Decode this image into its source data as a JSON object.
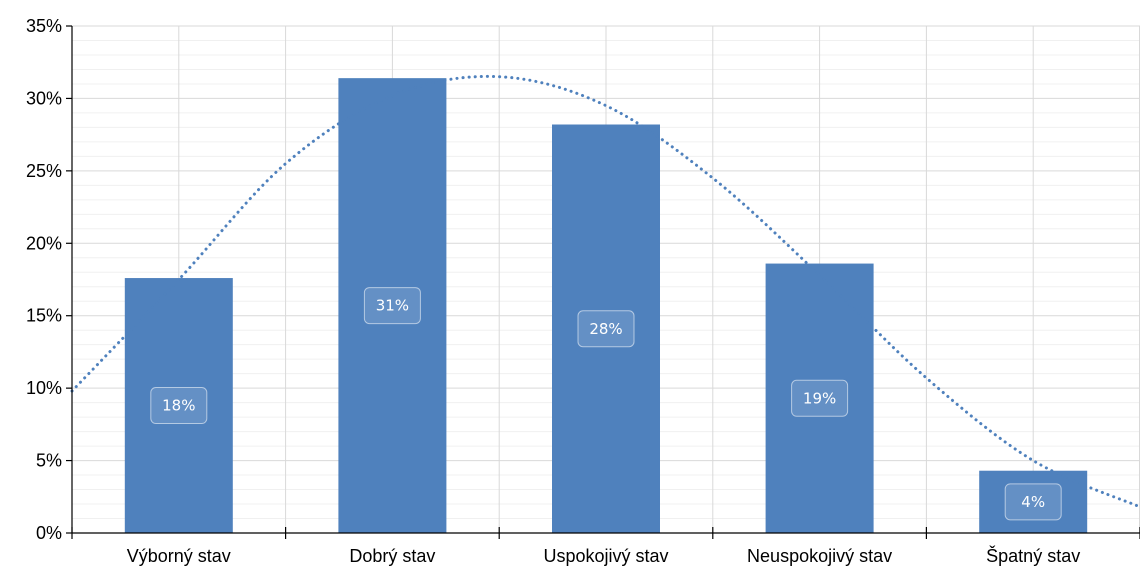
{
  "colors": {
    "bar": "#4f81bd",
    "trend": "#4f81bd",
    "grid_major": "#d9d9d9",
    "grid_minor": "#f0f0f0",
    "axis": "#000000",
    "label_box_fill": "#ffffff",
    "label_box_stroke": "#ffffff",
    "label_text": "#ffffff"
  },
  "chart_data": {
    "type": "bar",
    "title": "",
    "xlabel": "",
    "ylabel": "",
    "categories": [
      "Výborný stav",
      "Dobrý stav",
      "Uspokojivý stav",
      "Neuspokojivý stav",
      "Špatný stav"
    ],
    "values": [
      17.6,
      31.4,
      28.2,
      18.6,
      4.3
    ],
    "data_labels": [
      "18%",
      "31%",
      "28%",
      "19%",
      "4%"
    ],
    "ylim": [
      0,
      35
    ],
    "yticks": [
      0,
      5,
      10,
      15,
      20,
      25,
      30,
      35
    ],
    "ytick_labels": [
      "0%",
      "5%",
      "10%",
      "15%",
      "20%",
      "25%",
      "30%",
      "35%"
    ],
    "grid": true,
    "legend": "none",
    "trendline": {
      "style": "dotted",
      "x": [
        -0.5,
        0.0,
        0.5,
        1.0,
        1.5,
        2.0,
        2.5,
        3.0,
        3.5,
        4.0,
        4.5
      ],
      "y": [
        9.8,
        17.5,
        25.5,
        30.2,
        31.5,
        29.5,
        24.5,
        17.8,
        10.7,
        5.0,
        1.8
      ]
    }
  }
}
